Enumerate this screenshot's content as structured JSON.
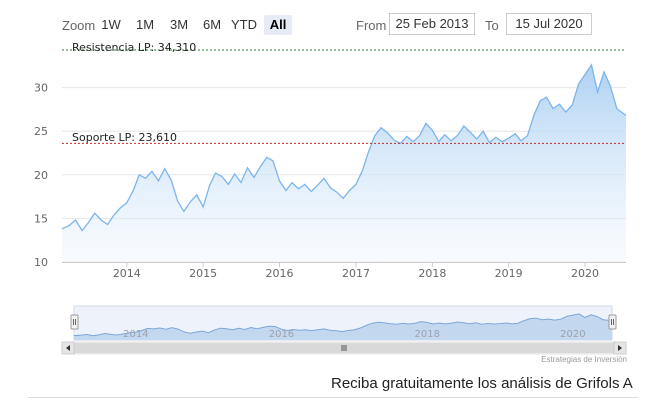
{
  "toolbar": {
    "zoom_label": "Zoom",
    "zoom_buttons": [
      "1W",
      "1M",
      "3M",
      "6M",
      "YTD",
      "All"
    ],
    "active_zoom": "All",
    "from_label": "From",
    "from_value": "25 Feb 2013",
    "to_label": "To",
    "to_value": "15 Jul 2020"
  },
  "credits": "Estrategias de Inversión",
  "cta_text": "Reciba gratuitamente los análisis de Grifols A",
  "colors": {
    "line": "#7cb5ec",
    "area_top": "#a9cff2",
    "resistance": "#2e7d32",
    "support": "#c62828"
  },
  "chart_data": {
    "type": "area",
    "title": "",
    "xlabel": "",
    "ylabel": "",
    "ylim": [
      10,
      35
    ],
    "x_range": [
      "2013-02-25",
      "2020-07-15"
    ],
    "y_ticks": [
      "10",
      "15",
      "20",
      "25",
      "30"
    ],
    "x_ticks": [
      "2014",
      "2015",
      "2016",
      "2017",
      "2018",
      "2019",
      "2020"
    ],
    "navigator_ticks": [
      "2014",
      "2016",
      "2018",
      "2020"
    ],
    "grid": true,
    "legend": "none",
    "plot_lines": [
      {
        "label": "Resistencia LP: 34,310",
        "value": 34.31,
        "style": "dashed"
      },
      {
        "label": "Soporte LP: 23,610",
        "value": 23.61,
        "style": "dashed"
      }
    ],
    "series": [
      {
        "x": [
          "2013-02-25",
          "2013-04-01",
          "2013-05-01",
          "2013-06-01",
          "2013-07-01",
          "2013-08-01",
          "2013-09-01",
          "2013-10-01",
          "2013-11-01",
          "2013-12-01",
          "2014-01-01",
          "2014-02-01",
          "2014-03-01",
          "2014-04-01",
          "2014-05-01",
          "2014-06-01",
          "2014-07-01",
          "2014-08-01",
          "2014-09-01",
          "2014-10-01",
          "2014-11-01",
          "2014-12-01",
          "2015-01-01",
          "2015-02-01",
          "2015-03-01",
          "2015-04-01",
          "2015-05-01",
          "2015-06-01",
          "2015-07-01",
          "2015-08-01",
          "2015-09-01",
          "2015-10-01",
          "2015-11-01",
          "2015-12-01",
          "2016-01-01",
          "2016-02-01",
          "2016-03-01",
          "2016-04-01",
          "2016-05-01",
          "2016-06-01",
          "2016-07-01",
          "2016-08-01",
          "2016-09-01",
          "2016-10-01",
          "2016-11-01",
          "2016-12-01",
          "2017-01-01",
          "2017-02-01",
          "2017-03-01",
          "2017-04-01",
          "2017-05-01",
          "2017-06-01",
          "2017-07-01",
          "2017-08-01",
          "2017-09-01",
          "2017-10-01",
          "2017-11-01",
          "2017-12-01",
          "2018-01-01",
          "2018-02-01",
          "2018-03-01",
          "2018-04-01",
          "2018-05-01",
          "2018-06-01",
          "2018-07-01",
          "2018-08-01",
          "2018-09-01",
          "2018-10-01",
          "2018-11-01",
          "2018-12-01",
          "2019-01-01",
          "2019-02-01",
          "2019-03-01",
          "2019-04-01",
          "2019-05-01",
          "2019-06-01",
          "2019-07-01",
          "2019-08-01",
          "2019-09-01",
          "2019-10-01",
          "2019-11-01",
          "2019-12-01",
          "2020-01-01",
          "2020-02-01",
          "2020-03-01",
          "2020-04-01",
          "2020-05-01",
          "2020-06-01",
          "2020-07-15"
        ],
        "values": [
          13.8,
          14.2,
          14.8,
          13.6,
          14.5,
          15.6,
          14.8,
          14.3,
          15.4,
          16.2,
          16.8,
          18.2,
          20.0,
          19.6,
          20.4,
          19.3,
          20.7,
          19.4,
          17.0,
          15.8,
          16.9,
          17.7,
          16.3,
          18.8,
          20.2,
          19.8,
          18.9,
          20.1,
          19.1,
          20.8,
          19.7,
          20.9,
          22.0,
          21.6,
          19.3,
          18.2,
          19.1,
          18.4,
          18.9,
          18.1,
          18.8,
          19.6,
          18.5,
          18.0,
          17.3,
          18.2,
          18.9,
          20.5,
          22.6,
          24.5,
          25.4,
          24.8,
          24.0,
          23.6,
          24.4,
          23.8,
          24.5,
          25.9,
          25.1,
          23.8,
          24.6,
          23.9,
          24.5,
          25.6,
          24.9,
          24.1,
          25.0,
          23.7,
          24.3,
          23.8,
          24.2,
          24.7,
          23.9,
          24.5,
          26.8,
          28.5,
          28.9,
          27.6,
          28.1,
          27.2,
          28.0,
          30.4,
          31.5,
          32.6,
          29.5,
          31.8,
          30.2,
          27.6,
          26.8
        ]
      }
    ]
  }
}
